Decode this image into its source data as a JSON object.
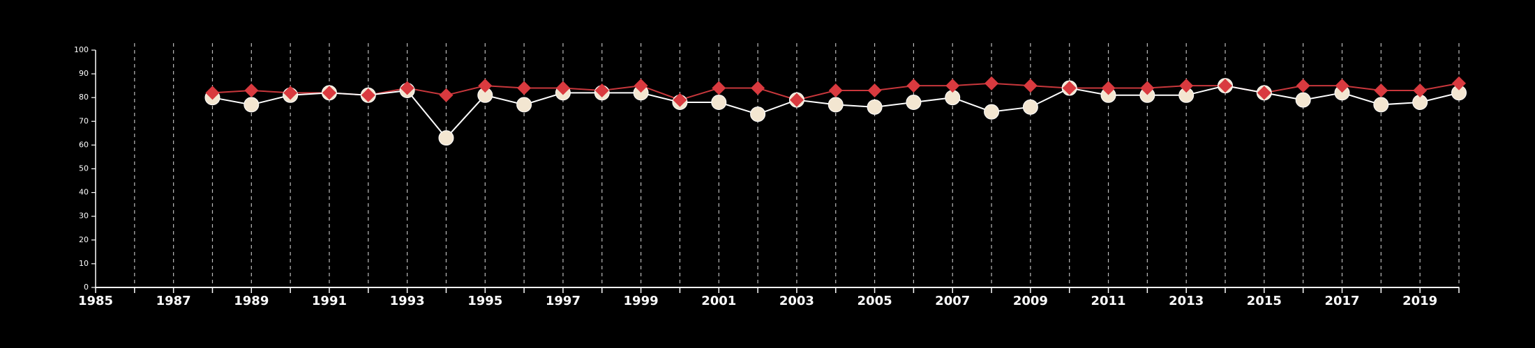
{
  "chart_data": {
    "type": "line",
    "title": "",
    "xlabel": "",
    "ylabel": "",
    "xlim": [
      1985,
      2020
    ],
    "ylim": [
      0,
      100
    ],
    "y_ticks": [
      0,
      10,
      20,
      30,
      40,
      50,
      60,
      70,
      80,
      90,
      100
    ],
    "x_ticks": [
      1985,
      1987,
      1989,
      1991,
      1993,
      1995,
      1997,
      1999,
      2001,
      2003,
      2005,
      2007,
      2009,
      2011,
      2013,
      2015,
      2017,
      2019
    ],
    "x_ticks_labeled": [
      1985,
      1987,
      1989,
      1991,
      1993,
      1995,
      1997,
      1999,
      2001,
      2003,
      2005,
      2007,
      2009,
      2011,
      2013,
      2015,
      2017,
      2019
    ],
    "grid": {
      "vertical": true,
      "horizontal": false,
      "style": "dashed"
    },
    "legend": "none",
    "x": [
      1988,
      1989,
      1990,
      1991,
      1992,
      1993,
      1994,
      1995,
      1996,
      1997,
      1998,
      1999,
      2000,
      2001,
      2002,
      2003,
      2004,
      2005,
      2006,
      2007,
      2008,
      2009,
      2010,
      2011,
      2012,
      2013,
      2014,
      2015,
      2016,
      2017,
      2018,
      2019,
      2020
    ],
    "series": [
      {
        "marker": "diamond",
        "color": "#d93a3f",
        "line_color": "#c8373c",
        "values": [
          82,
          83,
          82,
          82,
          81,
          84,
          81,
          85,
          84,
          84,
          83,
          85,
          79,
          84,
          84,
          79,
          83,
          83,
          85,
          85,
          86,
          85,
          84,
          84,
          84,
          85,
          85,
          82,
          85,
          85,
          83,
          83,
          86
        ]
      },
      {
        "marker": "circle",
        "color": "#f3e6d1",
        "line_color": "#ffffff",
        "values": [
          80,
          77,
          81,
          82,
          81,
          83,
          63,
          81,
          77,
          82,
          82,
          82,
          78,
          78,
          73,
          79,
          77,
          76,
          78,
          80,
          74,
          76,
          84,
          81,
          81,
          81,
          85,
          82,
          79,
          82,
          77,
          78,
          82
        ]
      }
    ]
  }
}
